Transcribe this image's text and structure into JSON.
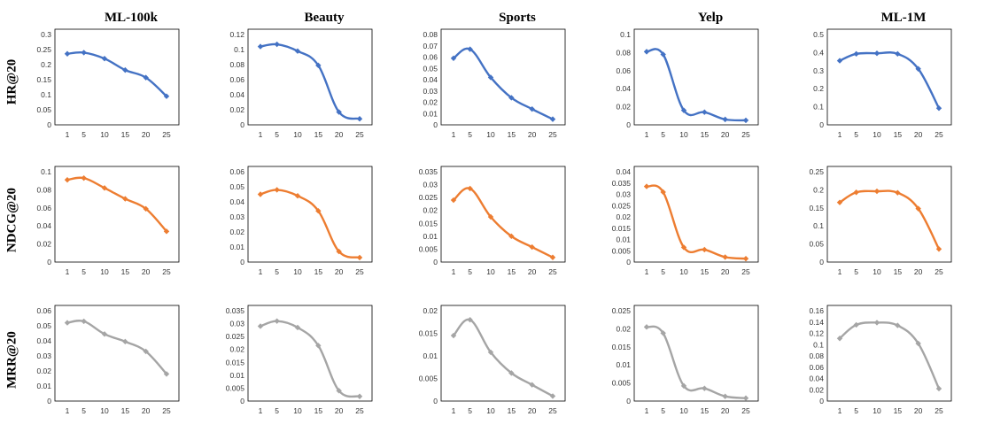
{
  "columns": [
    "ML-100k",
    "Beauty",
    "Sports",
    "Yelp",
    "ML-1M"
  ],
  "rows": [
    "HR@20",
    "NDCG@20",
    "MRR@20"
  ],
  "colors": {
    "HR@20": "#4472C4",
    "NDCG@20": "#ED7D31",
    "MRR@20": "#A5A5A5"
  },
  "chart_data": [
    {
      "type": "line",
      "dataset": "ML-100k",
      "metric": "HR@20",
      "x": [
        1,
        5,
        10,
        15,
        20,
        25
      ],
      "values": [
        0.236,
        0.24,
        0.22,
        0.182,
        0.157,
        0.095
      ],
      "ylim": [
        0,
        0.3
      ],
      "yticks": [
        "0",
        "0.05",
        "0.1",
        "0.15",
        "0.2",
        "0.25",
        "0.3"
      ]
    },
    {
      "type": "line",
      "dataset": "Beauty",
      "metric": "HR@20",
      "x": [
        1,
        5,
        10,
        15,
        20,
        25
      ],
      "values": [
        0.104,
        0.107,
        0.098,
        0.079,
        0.017,
        0.008
      ],
      "ylim": [
        0,
        0.12
      ],
      "yticks": [
        "0",
        "0.02",
        "0.04",
        "0.06",
        "0.08",
        "0.1",
        "0.12"
      ]
    },
    {
      "type": "line",
      "dataset": "Sports",
      "metric": "HR@20",
      "x": [
        1,
        5,
        10,
        15,
        20,
        25
      ],
      "values": [
        0.059,
        0.067,
        0.042,
        0.024,
        0.014,
        0.005
      ],
      "ylim": [
        0,
        0.08
      ],
      "yticks": [
        "0",
        "0.01",
        "0.02",
        "0.03",
        "0.04",
        "0.05",
        "0.06",
        "0.07",
        "0.08"
      ]
    },
    {
      "type": "line",
      "dataset": "Yelp",
      "metric": "HR@20",
      "x": [
        1,
        5,
        10,
        15,
        20,
        25
      ],
      "values": [
        0.081,
        0.078,
        0.016,
        0.014,
        0.006,
        0.005
      ],
      "ylim": [
        0,
        0.1
      ],
      "yticks": [
        "0",
        "0.02",
        "0.04",
        "0.06",
        "0.08",
        "0.1"
      ]
    },
    {
      "type": "line",
      "dataset": "ML-1M",
      "metric": "HR@20",
      "x": [
        1,
        5,
        10,
        15,
        20,
        25
      ],
      "values": [
        0.355,
        0.393,
        0.396,
        0.393,
        0.31,
        0.092
      ],
      "ylim": [
        0,
        0.5
      ],
      "yticks": [
        "0",
        "0.1",
        "0.2",
        "0.3",
        "0.4",
        "0.5"
      ]
    },
    {
      "type": "line",
      "dataset": "ML-100k",
      "metric": "NDCG@20",
      "x": [
        1,
        5,
        10,
        15,
        20,
        25
      ],
      "values": [
        0.091,
        0.093,
        0.082,
        0.07,
        0.059,
        0.034
      ],
      "ylim": [
        0,
        0.1
      ],
      "yticks": [
        "0",
        "0.02",
        "0.04",
        "0.06",
        "0.08",
        "0.1"
      ]
    },
    {
      "type": "line",
      "dataset": "Beauty",
      "metric": "NDCG@20",
      "x": [
        1,
        5,
        10,
        15,
        20,
        25
      ],
      "values": [
        0.045,
        0.048,
        0.044,
        0.034,
        0.007,
        0.003
      ],
      "ylim": [
        0,
        0.06
      ],
      "yticks": [
        "0",
        "0.01",
        "0.02",
        "0.03",
        "0.04",
        "0.05",
        "0.06"
      ]
    },
    {
      "type": "line",
      "dataset": "Sports",
      "metric": "NDCG@20",
      "x": [
        1,
        5,
        10,
        15,
        20,
        25
      ],
      "values": [
        0.024,
        0.0285,
        0.0175,
        0.01,
        0.0058,
        0.0018
      ],
      "ylim": [
        0,
        0.035
      ],
      "yticks": [
        "0",
        "0.005",
        "0.01",
        "0.015",
        "0.02",
        "0.025",
        "0.03",
        "0.035"
      ]
    },
    {
      "type": "line",
      "dataset": "Yelp",
      "metric": "NDCG@20",
      "x": [
        1,
        5,
        10,
        15,
        20,
        25
      ],
      "values": [
        0.0335,
        0.031,
        0.0065,
        0.0055,
        0.0022,
        0.0015
      ],
      "ylim": [
        0,
        0.04
      ],
      "yticks": [
        "0",
        "0.005",
        "0.01",
        "0.015",
        "0.02",
        "0.025",
        "0.03",
        "0.035",
        "0.04"
      ]
    },
    {
      "type": "line",
      "dataset": "ML-1M",
      "metric": "NDCG@20",
      "x": [
        1,
        5,
        10,
        15,
        20,
        25
      ],
      "values": [
        0.165,
        0.193,
        0.196,
        0.192,
        0.148,
        0.036
      ],
      "ylim": [
        0,
        0.25
      ],
      "yticks": [
        "0",
        "0.05",
        "0.1",
        "0.15",
        "0.2",
        "0.25"
      ]
    },
    {
      "type": "line",
      "dataset": "ML-100k",
      "metric": "MRR@20",
      "x": [
        1,
        5,
        10,
        15,
        20,
        25
      ],
      "values": [
        0.052,
        0.053,
        0.0445,
        0.0395,
        0.033,
        0.018
      ],
      "ylim": [
        0,
        0.06
      ],
      "yticks": [
        "0",
        "0.01",
        "0.02",
        "0.03",
        "0.04",
        "0.05",
        "0.06"
      ]
    },
    {
      "type": "line",
      "dataset": "Beauty",
      "metric": "MRR@20",
      "x": [
        1,
        5,
        10,
        15,
        20,
        25
      ],
      "values": [
        0.029,
        0.031,
        0.0285,
        0.0215,
        0.004,
        0.0018
      ],
      "ylim": [
        0,
        0.035
      ],
      "yticks": [
        "0",
        "0.005",
        "0.01",
        "0.015",
        "0.02",
        "0.025",
        "0.03",
        "0.035"
      ]
    },
    {
      "type": "line",
      "dataset": "Sports",
      "metric": "MRR@20",
      "x": [
        1,
        5,
        10,
        15,
        20,
        25
      ],
      "values": [
        0.0145,
        0.018,
        0.0108,
        0.0062,
        0.0036,
        0.0011
      ],
      "ylim": [
        0,
        0.02
      ],
      "yticks": [
        "0",
        "0.005",
        "0.01",
        "0.015",
        "0.02"
      ]
    },
    {
      "type": "line",
      "dataset": "Yelp",
      "metric": "MRR@20",
      "x": [
        1,
        5,
        10,
        15,
        20,
        25
      ],
      "values": [
        0.0205,
        0.0188,
        0.0042,
        0.0035,
        0.0013,
        0.0008
      ],
      "ylim": [
        0,
        0.025
      ],
      "yticks": [
        "0",
        "0.005",
        "0.01",
        "0.015",
        "0.02",
        "0.025"
      ]
    },
    {
      "type": "line",
      "dataset": "ML-1M",
      "metric": "MRR@20",
      "x": [
        1,
        5,
        10,
        15,
        20,
        25
      ],
      "values": [
        0.111,
        0.135,
        0.139,
        0.134,
        0.102,
        0.022
      ],
      "ylim": [
        0,
        0.16
      ],
      "yticks": [
        "0",
        "0.02",
        "0.04",
        "0.06",
        "0.08",
        "0.1",
        "0.12",
        "0.14",
        "0.16"
      ]
    }
  ]
}
